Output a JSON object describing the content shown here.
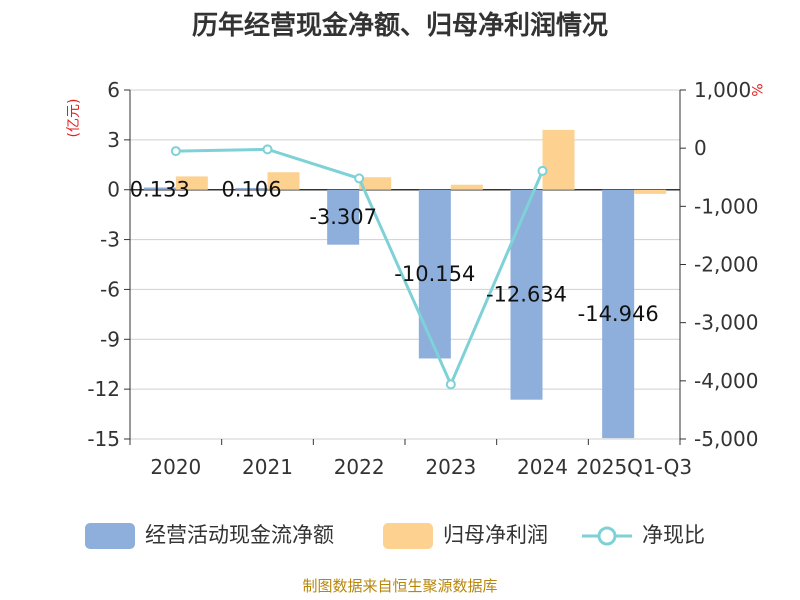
{
  "chart_data": {
    "type": "bar",
    "title": "历年经营现金净额、归母净利润情况",
    "categories": [
      "2020",
      "2021",
      "2022",
      "2023",
      "2024",
      "2025Q1-Q3"
    ],
    "left_axis": {
      "unit": "(亿元)",
      "ylim": [
        -15,
        6
      ],
      "ticks": [
        "6",
        "3",
        "0",
        "-3",
        "-6",
        "-9",
        "-12",
        "-15"
      ]
    },
    "right_axis": {
      "unit": "%",
      "ylim": [
        -5000,
        1000
      ],
      "ticks": [
        "1,000",
        "0",
        "-1,000",
        "-2,000",
        "-3,000",
        "-4,000",
        "-5,000"
      ]
    },
    "series": [
      {
        "name": "经营活动现金流净额",
        "kind": "bar",
        "axis": "left",
        "color": "#8eaedb",
        "values": [
          0.133,
          0.106,
          -3.307,
          -10.154,
          -12.634,
          -14.946
        ],
        "labels": [
          "0.133",
          "0.106",
          "-3.307",
          "-10.154",
          "-12.634",
          "-14.946"
        ]
      },
      {
        "name": "归母净利润",
        "kind": "bar",
        "axis": "left",
        "color": "#fdd18f",
        "values": [
          0.8,
          1.05,
          0.75,
          0.3,
          3.6,
          -0.25
        ]
      },
      {
        "name": "净现比",
        "kind": "line",
        "axis": "right",
        "color": "#7fd1d8",
        "values": [
          -50,
          -20,
          -520,
          -4060,
          -390,
          null
        ]
      }
    ],
    "legend_position": "bottom",
    "grid": true
  },
  "footer": {
    "source": "制图数据来自恒生聚源数据库"
  }
}
